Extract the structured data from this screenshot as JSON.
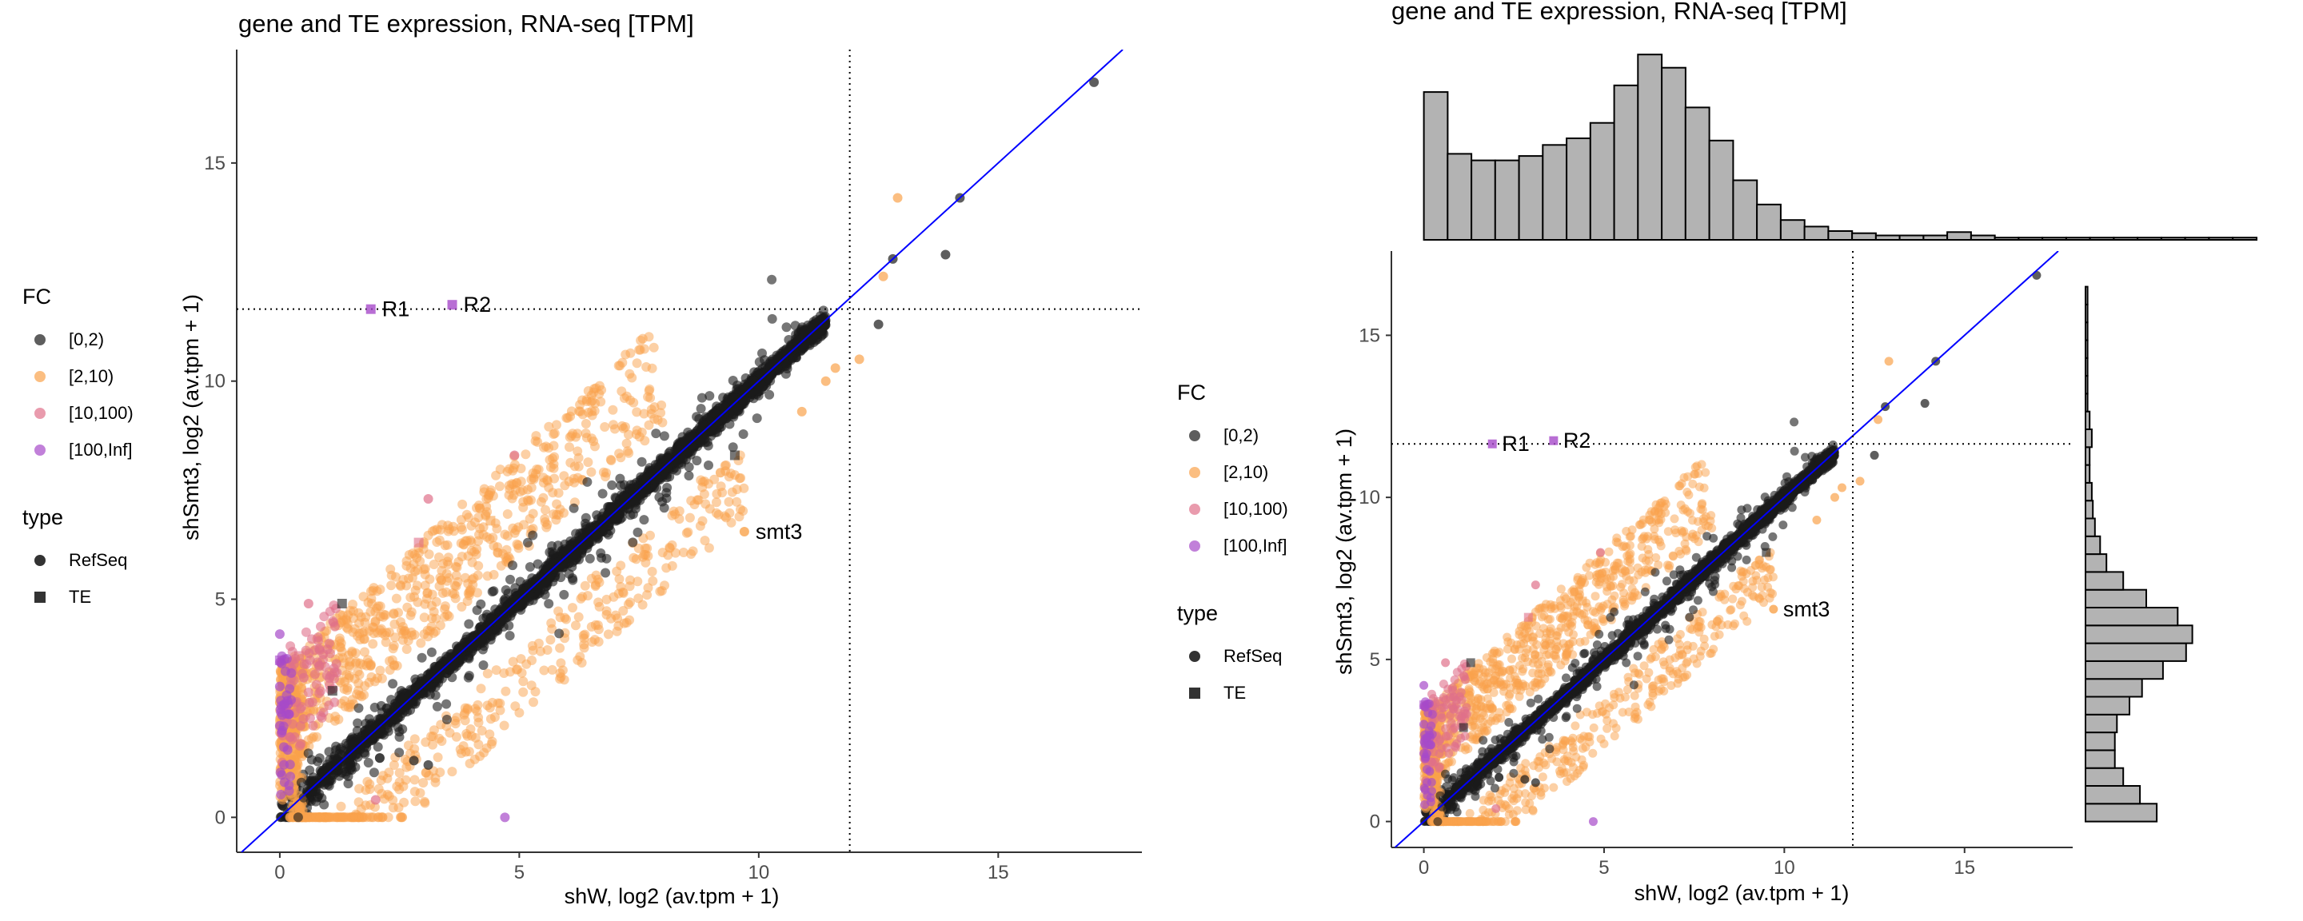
{
  "colors": {
    "fc_0_2": "#1a1a1a",
    "fc_2_10": "#f9a24b",
    "fc_10_100": "#e0708a",
    "fc_100_inf": "#a64ac9",
    "identity_line": "#0000ff",
    "hist_fill": "#b3b3b3",
    "axis": "#333333"
  },
  "chart_data": [
    {
      "type": "scatter",
      "title": "gene and TE expression, RNA-seq [TPM]",
      "xlabel": "shW, log2 (av.tpm + 1)",
      "ylabel": "shSmt3, log2 (av.tpm + 1)",
      "xlim": [
        -0.9,
        18
      ],
      "ylim": [
        -0.8,
        17.6
      ],
      "xticks": [
        0,
        5,
        10,
        15
      ],
      "yticks": [
        0,
        5,
        10,
        15
      ],
      "grid": false,
      "reference_lines": {
        "diagonal": "y = x",
        "vline_x": 11.9,
        "hline_y": 11.65
      },
      "legend": {
        "placement": "left",
        "fc_title": "FC",
        "fc_items": [
          {
            "label": "[0,2)",
            "color_key": "fc_0_2"
          },
          {
            "label": "[2,10)",
            "color_key": "fc_2_10"
          },
          {
            "label": "[10,100)",
            "color_key": "fc_10_100"
          },
          {
            "label": "[100,Inf]",
            "color_key": "fc_100_inf"
          }
        ],
        "type_title": "type",
        "type_items": [
          {
            "label": "RefSeq",
            "shape": "circle"
          },
          {
            "label": "TE",
            "shape": "square"
          }
        ]
      },
      "annotations": [
        {
          "label": "R1",
          "x": 1.9,
          "y": 11.65,
          "fc": "fc_100_inf",
          "shape": "square"
        },
        {
          "label": "R2",
          "x": 3.6,
          "y": 11.75,
          "fc": "fc_100_inf",
          "shape": "square"
        },
        {
          "label": "smt3",
          "x": 9.7,
          "y": 6.55,
          "fc": "fc_2_10",
          "shape": "circle"
        }
      ],
      "highlighted_points": [
        {
          "x": 17.0,
          "y": 16.85,
          "fc": "fc_0_2"
        },
        {
          "x": 14.2,
          "y": 14.2,
          "fc": "fc_0_2"
        },
        {
          "x": 13.9,
          "y": 12.9,
          "fc": "fc_0_2"
        },
        {
          "x": 12.9,
          "y": 14.2,
          "fc": "fc_2_10"
        },
        {
          "x": 12.8,
          "y": 12.8,
          "fc": "fc_0_2"
        },
        {
          "x": 12.6,
          "y": 12.4,
          "fc": "fc_2_10"
        },
        {
          "x": 12.5,
          "y": 11.3,
          "fc": "fc_0_2"
        },
        {
          "x": 12.1,
          "y": 10.5,
          "fc": "fc_2_10"
        },
        {
          "x": 11.6,
          "y": 10.3,
          "fc": "fc_2_10"
        },
        {
          "x": 11.4,
          "y": 10.0,
          "fc": "fc_2_10"
        },
        {
          "x": 10.9,
          "y": 9.3,
          "fc": "fc_2_10"
        },
        {
          "x": 9.5,
          "y": 8.3,
          "fc": "fc_0_2",
          "shape": "square"
        },
        {
          "x": 9.2,
          "y": 7.9,
          "fc": "fc_2_10"
        },
        {
          "x": 4.9,
          "y": 8.3,
          "fc": "fc_10_100"
        },
        {
          "x": 3.1,
          "y": 7.3,
          "fc": "fc_10_100"
        },
        {
          "x": 2.9,
          "y": 6.3,
          "fc": "fc_10_100",
          "shape": "square"
        },
        {
          "x": 4.4,
          "y": 6.8,
          "fc": "fc_2_10",
          "shape": "square"
        },
        {
          "x": 1.3,
          "y": 4.9,
          "fc": "fc_0_2",
          "shape": "square"
        },
        {
          "x": 0.6,
          "y": 4.9,
          "fc": "fc_10_100"
        },
        {
          "x": 0.0,
          "y": 4.2,
          "fc": "fc_100_inf"
        },
        {
          "x": 0.0,
          "y": 3.6,
          "fc": "fc_100_inf",
          "shape": "square"
        },
        {
          "x": 0.0,
          "y": 3.0,
          "fc": "fc_100_inf"
        },
        {
          "x": 0.1,
          "y": 2.6,
          "fc": "fc_100_inf"
        },
        {
          "x": 0.0,
          "y": 2.1,
          "fc": "fc_100_inf"
        },
        {
          "x": 0.4,
          "y": 3.7,
          "fc": "fc_10_100",
          "shape": "square"
        },
        {
          "x": 0.5,
          "y": 3.2,
          "fc": "fc_10_100"
        },
        {
          "x": 1.1,
          "y": 2.9,
          "fc": "fc_0_2",
          "shape": "square"
        },
        {
          "x": 4.7,
          "y": 0.0,
          "fc": "fc_100_inf"
        },
        {
          "x": 2.0,
          "y": 0.4,
          "fc": "fc_10_100"
        },
        {
          "x": 3.1,
          "y": 1.2,
          "fc": "fc_0_2"
        },
        {
          "x": 2.8,
          "y": 1.3,
          "fc": "fc_0_2"
        }
      ],
      "bulk_cloud": {
        "description_free": true,
        "ranges": [
          {
            "fc": "fc_0_2",
            "x_range": [
              0,
              11.5
            ],
            "spread": 0.55
          },
          {
            "fc": "fc_2_10",
            "x_range": [
              0,
              9
            ],
            "spread": 1.6
          },
          {
            "fc": "fc_10_100",
            "x_range": [
              0,
              2.5
            ],
            "spread": 2.5
          }
        ]
      }
    },
    {
      "type": "scatter",
      "title": "gene and TE expression, RNA-seq [TPM]",
      "xlabel": "shW, log2 (av.tpm + 1)",
      "ylabel": "shSmt3, log2 (av.tpm + 1)",
      "xlim": [
        -0.9,
        18
      ],
      "ylim": [
        -0.8,
        17.6
      ],
      "xticks": [
        0,
        5,
        10,
        15
      ],
      "yticks": [
        0,
        5,
        10,
        15
      ],
      "grid": false,
      "same_data_as_first": true
    },
    {
      "type": "bar",
      "orientation": "vertical",
      "role": "marginal histogram of shW, log2 (av.tpm + 1)",
      "bin_width": 0.66,
      "x_start": 0,
      "values": [
        0.67,
        0.39,
        0.36,
        0.36,
        0.38,
        0.43,
        0.46,
        0.53,
        0.7,
        0.84,
        0.78,
        0.6,
        0.45,
        0.27,
        0.16,
        0.09,
        0.06,
        0.04,
        0.03,
        0.02,
        0.02,
        0.02,
        0.035,
        0.02,
        0.01,
        0.01,
        0.01,
        0.01,
        0.01,
        0.01,
        0.01,
        0.01,
        0.01,
        0.01,
        0.01
      ]
    },
    {
      "type": "bar",
      "orientation": "horizontal",
      "role": "marginal histogram of shSmt3, log2 (av.tpm + 1)",
      "bin_width": 0.55,
      "y_start": 0,
      "values": [
        0.34,
        0.26,
        0.18,
        0.14,
        0.14,
        0.15,
        0.21,
        0.27,
        0.37,
        0.48,
        0.51,
        0.44,
        0.29,
        0.18,
        0.1,
        0.07,
        0.045,
        0.035,
        0.03,
        0.02,
        0.02,
        0.03,
        0.02,
        0.01,
        0.01,
        0.01,
        0.01,
        0.01,
        0.01,
        0.01
      ]
    }
  ]
}
